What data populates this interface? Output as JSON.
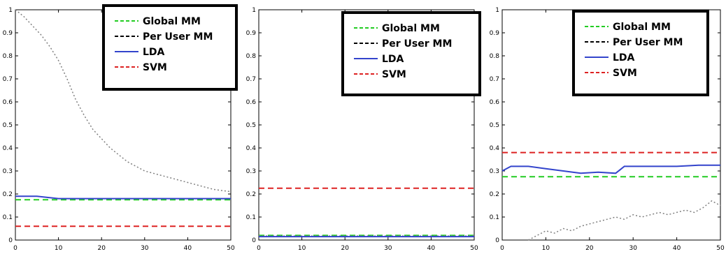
{
  "chart_data": [
    {
      "type": "line",
      "title": "",
      "xlabel": "",
      "ylabel": "",
      "xlim": [
        0,
        50
      ],
      "ylim": [
        0,
        1
      ],
      "xticks": [
        "0",
        "10",
        "20",
        "30",
        "40",
        "50"
      ],
      "yticks": [
        "0",
        "0.1",
        "0.2",
        "0.3",
        "0.4",
        "0.5",
        "0.6",
        "0.7",
        "0.8",
        "0.9",
        "1"
      ],
      "legend_position": "top-right",
      "series": [
        {
          "name": "Global MM",
          "color": "#22cc22",
          "style": "dashed",
          "x": [
            0,
            50
          ],
          "y": [
            0.175,
            0.175
          ]
        },
        {
          "name": "Per User MM",
          "color": "#808080",
          "style": "dotted",
          "x": [
            0,
            2,
            4,
            6,
            8,
            10,
            12,
            14,
            16,
            18,
            20,
            22,
            24,
            26,
            28,
            30,
            32,
            34,
            36,
            38,
            40,
            42,
            44,
            46,
            48,
            50
          ],
          "y": [
            1.0,
            0.97,
            0.93,
            0.89,
            0.84,
            0.78,
            0.7,
            0.61,
            0.54,
            0.48,
            0.44,
            0.4,
            0.37,
            0.34,
            0.32,
            0.3,
            0.29,
            0.28,
            0.27,
            0.26,
            0.25,
            0.24,
            0.23,
            0.22,
            0.215,
            0.21
          ]
        },
        {
          "name": "LDA",
          "color": "#3344cc",
          "style": "solid",
          "x": [
            0,
            5,
            10,
            15,
            20,
            50
          ],
          "y": [
            0.19,
            0.19,
            0.18,
            0.18,
            0.18,
            0.18
          ]
        },
        {
          "name": "SVM",
          "color": "#dd2222",
          "style": "dashed",
          "x": [
            0,
            50
          ],
          "y": [
            0.06,
            0.06
          ]
        }
      ]
    },
    {
      "type": "line",
      "title": "",
      "xlabel": "",
      "ylabel": "",
      "xlim": [
        0,
        50
      ],
      "ylim": [
        0,
        1
      ],
      "xticks": [
        "0",
        "10",
        "20",
        "30",
        "40",
        "50"
      ],
      "yticks": [
        "0",
        "0.1",
        "0.2",
        "0.3",
        "0.4",
        "0.5",
        "0.6",
        "0.7",
        "0.8",
        "0.9",
        "1"
      ],
      "legend_position": "top-right",
      "series": [
        {
          "name": "Global MM",
          "color": "#22cc22",
          "style": "dashed",
          "x": [
            0,
            50
          ],
          "y": [
            0.02,
            0.02
          ]
        },
        {
          "name": "Per User MM",
          "color": "#808080",
          "style": "dotted",
          "x": [
            0,
            50
          ],
          "y": [
            0.018,
            0.018
          ]
        },
        {
          "name": "LDA",
          "color": "#3344cc",
          "style": "solid",
          "x": [
            0,
            50
          ],
          "y": [
            0.015,
            0.015
          ]
        },
        {
          "name": "SVM",
          "color": "#dd2222",
          "style": "dashed",
          "x": [
            0,
            50
          ],
          "y": [
            0.225,
            0.225
          ]
        }
      ]
    },
    {
      "type": "line",
      "title": "",
      "xlabel": "",
      "ylabel": "",
      "xlim": [
        0,
        50
      ],
      "ylim": [
        0,
        1
      ],
      "xticks": [
        "0",
        "10",
        "20",
        "30",
        "40",
        "50"
      ],
      "yticks": [
        "0",
        "0.1",
        "0.2",
        "0.3",
        "0.4",
        "0.5",
        "0.6",
        "0.7",
        "0.8",
        "0.9",
        "1"
      ],
      "legend_position": "top-right",
      "series": [
        {
          "name": "Global MM",
          "color": "#22cc22",
          "style": "dashed",
          "x": [
            0,
            50
          ],
          "y": [
            0.275,
            0.275
          ]
        },
        {
          "name": "Per User MM",
          "color": "#808080",
          "style": "dotted",
          "x": [
            6,
            8,
            10,
            12,
            14,
            16,
            18,
            20,
            22,
            24,
            26,
            28,
            30,
            32,
            34,
            36,
            38,
            40,
            42,
            44,
            46,
            48,
            50
          ],
          "y": [
            0.0,
            0.02,
            0.04,
            0.03,
            0.05,
            0.04,
            0.06,
            0.07,
            0.08,
            0.09,
            0.1,
            0.09,
            0.11,
            0.1,
            0.11,
            0.12,
            0.11,
            0.12,
            0.13,
            0.12,
            0.14,
            0.17,
            0.15
          ]
        },
        {
          "name": "LDA",
          "color": "#3344cc",
          "style": "solid",
          "x": [
            0,
            2,
            6,
            10,
            14,
            18,
            22,
            26,
            28,
            32,
            40,
            45,
            50
          ],
          "y": [
            0.3,
            0.32,
            0.32,
            0.31,
            0.3,
            0.29,
            0.295,
            0.29,
            0.32,
            0.32,
            0.32,
            0.325,
            0.325
          ]
        },
        {
          "name": "SVM",
          "color": "#dd2222",
          "style": "dashed",
          "x": [
            0,
            50
          ],
          "y": [
            0.38,
            0.38
          ]
        }
      ]
    }
  ]
}
